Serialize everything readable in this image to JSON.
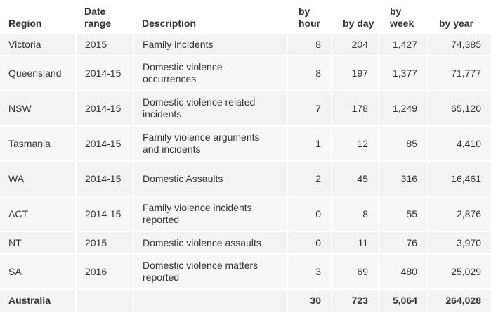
{
  "table": {
    "headers": {
      "region": "Region",
      "date_range": "Date range",
      "description": "Description",
      "by_hour": "by hour",
      "by_day": "by day",
      "by_week": "by week",
      "by_year": "by year"
    },
    "rows": [
      {
        "region": "Victoria",
        "date_range": "2015",
        "description": "Family incidents",
        "by_hour": "8",
        "by_day": "204",
        "by_week": "1,427",
        "by_year": "74,385"
      },
      {
        "region": "Queensland",
        "date_range": "2014-15",
        "description": "Domestic violence occurrences",
        "by_hour": "8",
        "by_day": "197",
        "by_week": "1,377",
        "by_year": "71,777"
      },
      {
        "region": "NSW",
        "date_range": "2014-15",
        "description": "Domestic violence related incidents",
        "by_hour": "7",
        "by_day": "178",
        "by_week": "1,249",
        "by_year": "65,120"
      },
      {
        "region": "Tasmania",
        "date_range": "2014-15",
        "description": "Family violence arguments and incidents",
        "by_hour": "1",
        "by_day": "12",
        "by_week": "85",
        "by_year": "4,410"
      },
      {
        "region": "WA",
        "date_range": "2014-15",
        "description": "Domestic Assaults",
        "by_hour": "2",
        "by_day": "45",
        "by_week": "316",
        "by_year": "16,461"
      },
      {
        "region": "ACT",
        "date_range": "2014-15",
        "description": "Family violence incidents reported",
        "by_hour": "0",
        "by_day": "8",
        "by_week": "55",
        "by_year": "2,876"
      },
      {
        "region": "NT",
        "date_range": "2015",
        "description": "Domestic violence assaults",
        "by_hour": "0",
        "by_day": "11",
        "by_week": "76",
        "by_year": "3,970"
      },
      {
        "region": "SA",
        "date_range": "2016",
        "description": "Domestic violence matters reported",
        "by_hour": "3",
        "by_day": "69",
        "by_week": "480",
        "by_year": "25,029"
      }
    ],
    "total": {
      "region": "Australia",
      "date_range": "",
      "description": "",
      "by_hour": "30",
      "by_day": "723",
      "by_week": "5,064",
      "by_year": "264,028"
    }
  }
}
